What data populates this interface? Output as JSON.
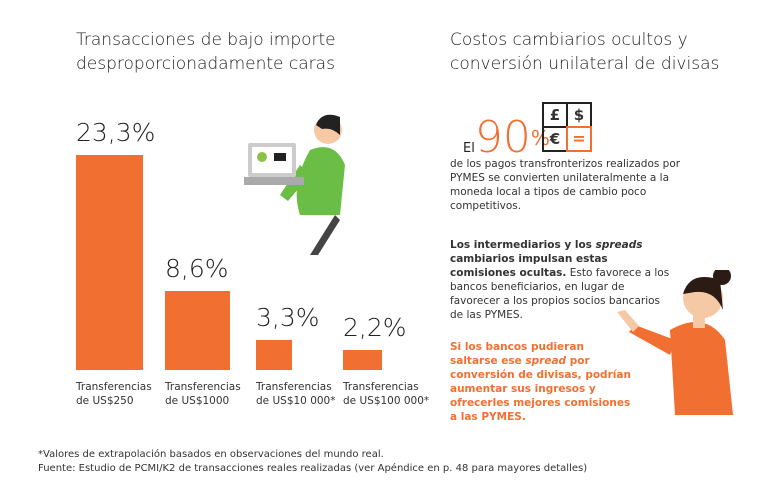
{
  "left": {
    "title_line1": "Transacciones de bajo importe",
    "title_line2": "desproporcionadamente caras"
  },
  "right": {
    "title_line1": "Costos cambiarios ocultos y",
    "title_line2": "conversión unilateral de divisas",
    "stat_prefix": "El",
    "stat_value": "90",
    "stat_unit": "%",
    "stat_text": "de los pagos transfronterizos realizados por PYMES se convierten unilateralmente a la moneda local a tipos de cambio poco competitivos.",
    "para2_bold": "Los intermediarios y los ",
    "para2_bold_italic": "spreads",
    "para2_bold2": " cambiarios impulsan estas comisiones ocultas.",
    "para2_rest": " Esto favorece a los bancos beneficiarios, en lugar de favorecer a los propios socios bancarios de las PYMES.",
    "para3_a": "Si los bancos pudieran saltarse ese ",
    "para3_italic": "spread",
    "para3_b": " por conversión de divisas, podrían aumentar sus ingresos y ofrecerles mejores comisiones a las PYMES.",
    "currency_icons": [
      "£",
      "$",
      "€",
      "="
    ]
  },
  "colors": {
    "accent": "#F26F32",
    "text": "#333333"
  },
  "chart_data": {
    "type": "bar",
    "categories": [
      "Transferencias de US$250",
      "Transferencias de US$1000",
      "Transferencias de US$10 000*",
      "Transferencias de US$100 000*"
    ],
    "category_lines": [
      [
        "Transferencias",
        "de US$250"
      ],
      [
        "Transferencias",
        "de US$1000"
      ],
      [
        "Transferencias",
        "de US$10 000*"
      ],
      [
        "Transferencias",
        "de US$100 000*"
      ]
    ],
    "values": [
      23.3,
      8.6,
      3.3,
      2.2
    ],
    "labels": [
      "23,3%",
      "8,6%",
      "3,3%",
      "2,2%"
    ],
    "unit": "%",
    "grid": false
  },
  "footnotes": {
    "note1": "*Valores de extrapolación basados en observaciones del mundo real.",
    "note2": "Fuente: Estudio de PCMI/K2 de transacciones reales realizadas (ver Apéndice en p. 48 para mayores detalles)"
  }
}
